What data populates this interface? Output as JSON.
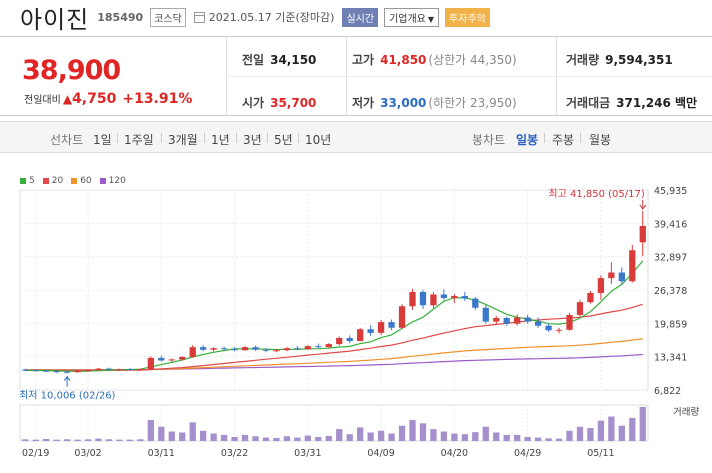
{
  "header": {
    "name": "아이진",
    "code": "185490",
    "market": "코스닥",
    "date": "2021.05.17 기준(장마감)",
    "realtime_label": "실시간",
    "company_label": "기업개요",
    "warning_label": "투자주의"
  },
  "price": {
    "current": "38,900",
    "change_label": "전일대비",
    "change": "4,750",
    "change_pct": "+13.91%"
  },
  "stats": {
    "prev_close_label": "전일",
    "prev_close": "34,150",
    "high_label": "고가",
    "high": "41,850",
    "upper_limit": "(상한가 44,350)",
    "volume_label": "거래량",
    "volume": "9,594,351",
    "open_label": "시가",
    "open": "35,700",
    "low_label": "저가",
    "low": "33,000",
    "lower_limit": "(하한가 23,950)",
    "amount_label": "거래대금",
    "amount": "371,246 백만"
  },
  "tabs": {
    "line_label": "선차트",
    "line_periods": [
      "1일",
      "1주일",
      "3개월",
      "1년",
      "3년",
      "5년",
      "10년"
    ],
    "candle_label": "봉차트",
    "candle_periods": [
      "일봉",
      "주봉",
      "월봉"
    ],
    "candle_selected": 0
  },
  "colors": {
    "up": "#d93a3a",
    "down": "#3a78c9",
    "ma5": "#36b03a",
    "ma20": "#e04a4a",
    "ma60": "#f0922a",
    "ma120": "#9a5cc8",
    "volume": "#a58fcc"
  },
  "chart_data": {
    "type": "candlestick",
    "legend": [
      {
        "name": "5",
        "color": "#36b03a"
      },
      {
        "name": "20",
        "color": "#e04a4a"
      },
      {
        "name": "60",
        "color": "#f0922a"
      },
      {
        "name": "120",
        "color": "#9a5cc8"
      }
    ],
    "y_ticks": [
      "45,935",
      "39,416",
      "32,897",
      "26,378",
      "19,859",
      "13,341",
      "6,822"
    ],
    "y_tick_values": [
      45935,
      39416,
      32897,
      26378,
      19859,
      13341,
      6822
    ],
    "x_ticks": [
      {
        "label": "02/19",
        "index": 1
      },
      {
        "label": "03/02",
        "index": 6
      },
      {
        "label": "03/11",
        "index": 13
      },
      {
        "label": "03/22",
        "index": 20
      },
      {
        "label": "03/31",
        "index": 27
      },
      {
        "label": "04/09",
        "index": 34
      },
      {
        "label": "04/20",
        "index": 41
      },
      {
        "label": "04/29",
        "index": 48
      },
      {
        "label": "05/11",
        "index": 55
      }
    ],
    "max_label": "최고 41,850 (05/17)",
    "min_label": "최저 10,006 (02/26)",
    "volume_label": "거래량",
    "candles": [
      [
        10800,
        11000,
        10500,
        10700
      ],
      [
        10700,
        10900,
        10400,
        10600
      ],
      [
        10600,
        10800,
        10300,
        10500
      ],
      [
        10500,
        10700,
        10200,
        10400
      ],
      [
        10400,
        10600,
        10006,
        10300
      ],
      [
        10300,
        10700,
        10200,
        10600
      ],
      [
        10600,
        10900,
        10400,
        10700
      ],
      [
        10700,
        11100,
        10600,
        11000
      ],
      [
        11000,
        11200,
        10700,
        10800
      ],
      [
        10800,
        11000,
        10600,
        10900
      ],
      [
        10900,
        11100,
        10700,
        10800
      ],
      [
        10800,
        11000,
        10600,
        10900
      ],
      [
        10900,
        13400,
        10800,
        13100
      ],
      [
        13100,
        13500,
        12400,
        12600
      ],
      [
        12600,
        13000,
        12300,
        12800
      ],
      [
        12800,
        13400,
        12600,
        13300
      ],
      [
        13300,
        15600,
        13100,
        15200
      ],
      [
        15200,
        15600,
        14400,
        14700
      ],
      [
        14700,
        15200,
        14300,
        15000
      ],
      [
        15000,
        15300,
        14600,
        14800
      ],
      [
        14800,
        15200,
        14400,
        14600
      ],
      [
        14600,
        15400,
        14500,
        15200
      ],
      [
        15200,
        15500,
        14500,
        14700
      ],
      [
        14700,
        15000,
        14200,
        14500
      ],
      [
        14500,
        14800,
        14200,
        14600
      ],
      [
        14600,
        15200,
        14400,
        15000
      ],
      [
        15000,
        15400,
        14600,
        14800
      ],
      [
        14800,
        15600,
        14700,
        15400
      ],
      [
        15400,
        15900,
        15000,
        15200
      ],
      [
        15200,
        16000,
        15100,
        15800
      ],
      [
        15800,
        17300,
        15500,
        17000
      ],
      [
        17000,
        17500,
        16000,
        16400
      ],
      [
        16400,
        19000,
        16300,
        18700
      ],
      [
        18700,
        19500,
        17400,
        18000
      ],
      [
        18000,
        20500,
        17600,
        20100
      ],
      [
        20100,
        20600,
        18500,
        19000
      ],
      [
        19000,
        23600,
        18800,
        23200
      ],
      [
        23200,
        26600,
        22500,
        26000
      ],
      [
        26000,
        26400,
        22700,
        23400
      ],
      [
        23400,
        26000,
        22800,
        25500
      ],
      [
        25500,
        26500,
        24400,
        24800
      ],
      [
        24800,
        25600,
        23800,
        25200
      ],
      [
        25200,
        26000,
        24200,
        24700
      ],
      [
        24700,
        25000,
        22500,
        22900
      ],
      [
        22900,
        23400,
        19800,
        20200
      ],
      [
        20200,
        21300,
        19500,
        20900
      ],
      [
        20900,
        21200,
        19400,
        19800
      ],
      [
        19800,
        21600,
        19400,
        21000
      ],
      [
        21000,
        21500,
        19800,
        20200
      ],
      [
        20200,
        21000,
        19000,
        19400
      ],
      [
        19400,
        19800,
        18200,
        18500
      ],
      [
        18500,
        19000,
        17900,
        18600
      ],
      [
        18600,
        21900,
        18400,
        21500
      ],
      [
        21500,
        24500,
        21200,
        24000
      ],
      [
        24000,
        26200,
        23700,
        25800
      ],
      [
        25800,
        29200,
        24500,
        28700
      ],
      [
        28700,
        31800,
        27600,
        29800
      ],
      [
        29800,
        30800,
        27400,
        28100
      ],
      [
        28100,
        35200,
        27800,
        34150
      ],
      [
        35700,
        41850,
        33000,
        38900
      ]
    ],
    "ma5": [
      10650,
      10630,
      10610,
      10560,
      10500,
      10480,
      10500,
      10600,
      10720,
      10800,
      10840,
      10880,
      11340,
      11780,
      12220,
      12680,
      13300,
      13760,
      14200,
      14540,
      14860,
      14870,
      14860,
      14800,
      14720,
      14780,
      14780,
      14860,
      14900,
      15000,
      15240,
      15320,
      15900,
      16240,
      17060,
      17600,
      18860,
      20140,
      21060,
      22640,
      24160,
      24900,
      24840,
      24400,
      23560,
      22600,
      21620,
      21040,
      20700,
      20300,
      19780,
      19700,
      20000,
      20880,
      22140,
      24080,
      26140,
      27480,
      29620,
      32060
    ],
    "ma20": [
      10700,
      10690,
      10680,
      10660,
      10640,
      10630,
      10630,
      10640,
      10660,
      10680,
      10700,
      10720,
      10840,
      10960,
      11080,
      11200,
      11400,
      11600,
      11800,
      12000,
      12210,
      12420,
      12640,
      12840,
      13030,
      13240,
      13440,
      13640,
      13830,
      14030,
      14230,
      14430,
      14720,
      14990,
      15330,
      15610,
      16030,
      16560,
      16970,
      17480,
      17950,
      18400,
      18820,
      19210,
      19420,
      19650,
      19860,
      20110,
      20350,
      20520,
      20660,
      20770,
      20900,
      21050,
      21300,
      21700,
      22100,
      22420,
      22960,
      23610
    ],
    "ma60": [
      10760,
      10760,
      10750,
      10750,
      10740,
      10740,
      10740,
      10740,
      10750,
      10760,
      10760,
      10770,
      10830,
      10890,
      10950,
      11010,
      11110,
      11200,
      11290,
      11380,
      11460,
      11550,
      11640,
      11720,
      11800,
      11890,
      11970,
      12050,
      12140,
      12230,
      12330,
      12420,
      12550,
      12670,
      12830,
      12970,
      13180,
      13440,
      13630,
      13860,
      14070,
      14270,
      14470,
      14620,
      14720,
      14840,
      14940,
      15060,
      15170,
      15250,
      15320,
      15380,
      15460,
      15580,
      15740,
      15940,
      16160,
      16320,
      16580,
      16880
    ],
    "ma120": [
      10800,
      10800,
      10800,
      10800,
      10790,
      10790,
      10790,
      10790,
      10790,
      10800,
      10800,
      10800,
      10830,
      10860,
      10890,
      10920,
      10970,
      11010,
      11060,
      11100,
      11140,
      11180,
      11230,
      11260,
      11300,
      11340,
      11380,
      11420,
      11460,
      11500,
      11550,
      11590,
      11650,
      11710,
      11790,
      11850,
      11960,
      12080,
      12170,
      12280,
      12380,
      12470,
      12570,
      12640,
      12690,
      12750,
      12800,
      12860,
      12910,
      12950,
      12990,
      13020,
      13060,
      13120,
      13200,
      13300,
      13410,
      13490,
      13620,
      13770
    ],
    "volume_rel": [
      0.05,
      0.04,
      0.06,
      0.04,
      0.05,
      0.04,
      0.05,
      0.07,
      0.05,
      0.04,
      0.04,
      0.05,
      0.62,
      0.42,
      0.28,
      0.25,
      0.55,
      0.3,
      0.22,
      0.18,
      0.12,
      0.18,
      0.14,
      0.1,
      0.09,
      0.14,
      0.1,
      0.16,
      0.12,
      0.15,
      0.35,
      0.2,
      0.4,
      0.25,
      0.3,
      0.22,
      0.45,
      0.62,
      0.52,
      0.35,
      0.28,
      0.22,
      0.2,
      0.26,
      0.42,
      0.25,
      0.18,
      0.18,
      0.12,
      0.1,
      0.08,
      0.07,
      0.3,
      0.42,
      0.38,
      0.6,
      0.72,
      0.45,
      0.68,
      1.0
    ]
  }
}
